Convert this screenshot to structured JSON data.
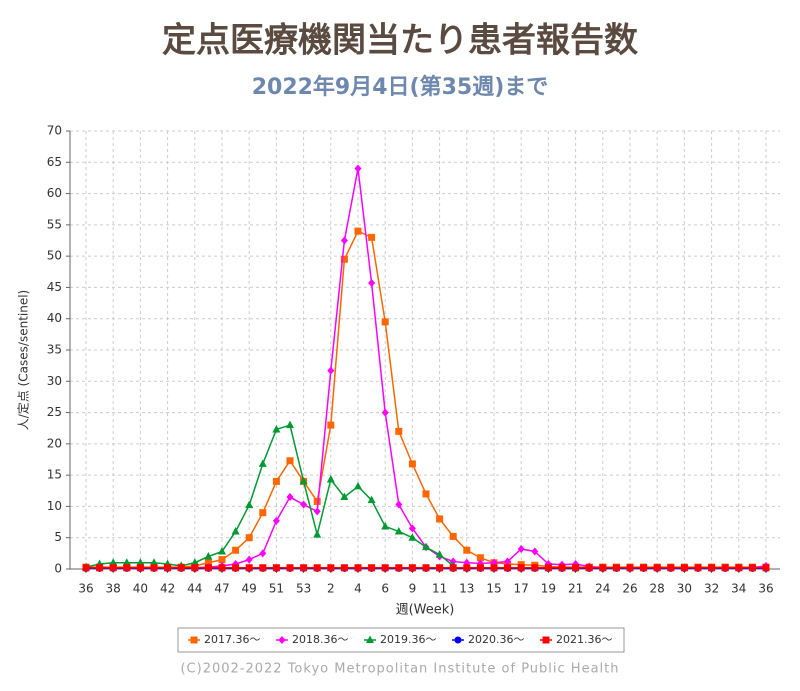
{
  "chart_data": {
    "type": "line",
    "title": "定点医療機関当たり患者報告数",
    "subtitle": "2022年9月4日(第35週)まで",
    "y_label": "人/定点 (Cases/sentinel)",
    "x_label": "週(Week)",
    "footer": "(C)2002-2022 Tokyo Metropolitan Institute of Public Health",
    "categories": [
      "36",
      null,
      "38",
      null,
      "40",
      null,
      "42",
      null,
      "44",
      null,
      "47",
      null,
      "49",
      null,
      "51",
      null,
      "53",
      null,
      "2",
      null,
      "4",
      null,
      "6",
      null,
      "9",
      null,
      "11",
      null,
      "13",
      null,
      "15",
      null,
      "17",
      null,
      "19",
      null,
      "21",
      null,
      "24",
      null,
      "26",
      null,
      "28",
      null,
      "30",
      null,
      "32",
      null,
      "34",
      null,
      "36"
    ],
    "ylim": [
      0,
      70
    ],
    "yticks": [
      0,
      5,
      10,
      15,
      20,
      25,
      30,
      35,
      40,
      45,
      50,
      55,
      60,
      65,
      70
    ],
    "grid": true,
    "legend": "bottom",
    "series": [
      {
        "name": "2017.36～",
        "color": "#ff6600",
        "marker": "square",
        "values": [
          0.3,
          0.3,
          0.3,
          0.3,
          0.3,
          0.3,
          0.3,
          0.3,
          0.5,
          1,
          1.5,
          3,
          5,
          9,
          14,
          17.3,
          14,
          10.8,
          23,
          49.5,
          54,
          53,
          39.5,
          22,
          16.8,
          12,
          8,
          5.2,
          3,
          1.8,
          1,
          0.8,
          0.7,
          0.6,
          0.4,
          0.3,
          0.3,
          0.3,
          0.3,
          0.3,
          0.3,
          0.3,
          0.3,
          0.3,
          0.3,
          0.3,
          0.3,
          0.3,
          0.3,
          0.3,
          0.3
        ]
      },
      {
        "name": "2018.36～",
        "color": "#ff00ff",
        "marker": "diamond",
        "values": [
          0.2,
          0.2,
          0.2,
          0.2,
          0.2,
          0.2,
          0.2,
          0.2,
          0.2,
          0.3,
          0.5,
          0.8,
          1.5,
          2.5,
          7.7,
          11.5,
          10.3,
          9.2,
          31.7,
          52.5,
          64,
          45.7,
          25,
          10.3,
          6.5,
          3.5,
          2,
          1.2,
          1,
          0.9,
          1,
          1.2,
          3.2,
          2.8,
          0.8,
          0.7,
          0.8,
          0.4,
          0.2,
          0.2,
          0.2,
          0.2,
          0.2,
          0.2,
          0.2,
          0.2,
          0.2,
          0.2,
          0.2,
          0.2,
          0.5
        ]
      },
      {
        "name": "2019.36～",
        "color": "#009933",
        "marker": "triangle",
        "values": [
          0.3,
          0.8,
          1,
          1,
          1,
          1,
          0.8,
          0.5,
          1,
          2,
          2.8,
          6,
          10.2,
          16.8,
          22.3,
          23,
          14,
          5.5,
          14.3,
          11.5,
          13.2,
          11,
          6.8,
          6,
          5,
          3.5,
          2.3,
          0.5,
          null,
          null,
          null,
          null,
          null,
          null,
          null,
          null,
          null,
          null,
          null,
          null,
          null,
          null,
          null,
          null,
          null,
          null,
          null,
          null,
          null,
          null,
          null
        ]
      },
      {
        "name": "2020.36～",
        "color": "#0000ff",
        "marker": "circle",
        "values": [
          0.1,
          0.1,
          0.1,
          0.1,
          0.1,
          0.1,
          0.1,
          0.1,
          0.1,
          0.1,
          0.1,
          0.1,
          0.1,
          0.1,
          0.1,
          0.1,
          0.1,
          0.1,
          0.1,
          0.1,
          0.1,
          0.1,
          0.1,
          0.1,
          0.1,
          0.1,
          0.1,
          0.1,
          0.1,
          0.1,
          0.1,
          0.1,
          0.1,
          0.1,
          0.1,
          0.1,
          0.1,
          0.1,
          0.1,
          0.1,
          0.1,
          0.1,
          0.1,
          0.1,
          0.1,
          0.1,
          0.1,
          0.1,
          0.1,
          0.1,
          0.1
        ]
      },
      {
        "name": "2021.36～",
        "color": "#ff0000",
        "marker": "square",
        "values": [
          0.2,
          0.2,
          0.2,
          0.2,
          0.2,
          0.2,
          0.2,
          0.2,
          0.2,
          0.2,
          0.2,
          0.2,
          0.2,
          0.2,
          0.2,
          0.2,
          0.2,
          0.2,
          0.2,
          0.2,
          0.2,
          0.2,
          0.2,
          0.2,
          0.2,
          0.2,
          0.2,
          0.2,
          0.2,
          0.2,
          0.2,
          0.2,
          0.2,
          0.2,
          0.2,
          0.2,
          0.2,
          0.2,
          0.2,
          0.2,
          0.2,
          0.2,
          0.2,
          0.2,
          0.2,
          0.2,
          0.2,
          0.2,
          0.2,
          0.2,
          0.2
        ]
      }
    ]
  }
}
